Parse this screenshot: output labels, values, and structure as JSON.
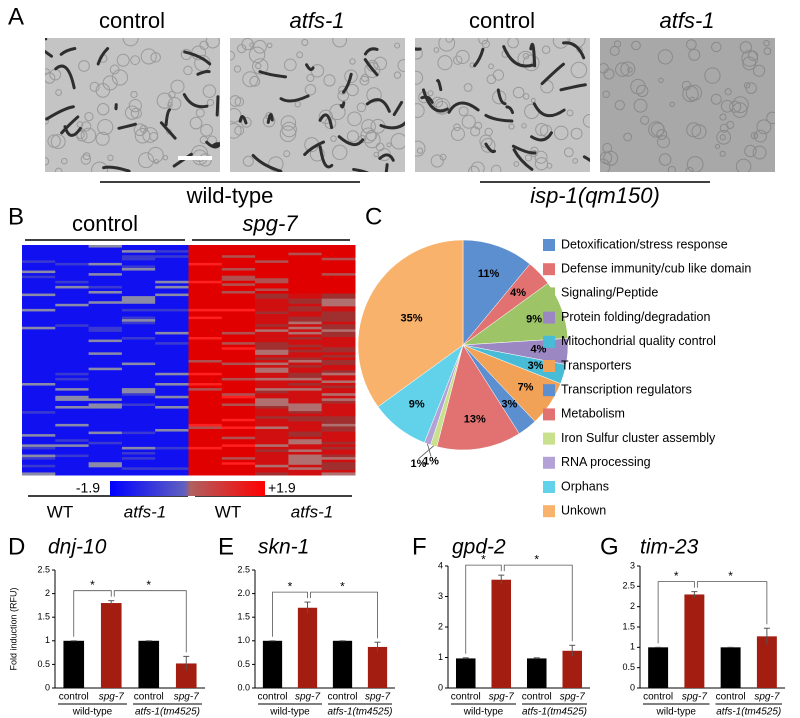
{
  "panel_a": {
    "letter": "A",
    "labels": [
      "control",
      "atfs-1",
      "control",
      "atfs-1"
    ],
    "groups": [
      "wild-type",
      "isp-1(qm150)"
    ]
  },
  "panel_b": {
    "letter": "B",
    "column_groups": [
      "control",
      "spg-7"
    ],
    "row_groups": [
      "WT",
      "atfs-1",
      "WT",
      "atfs-1"
    ],
    "scale_labels": [
      "-1.9",
      "+1.9"
    ]
  },
  "chart_data": [
    {
      "type": "pie",
      "panel": "C",
      "categories": [
        "Detoxification/stress response",
        "Defense immunity/cub like domain",
        "Signaling/Peptide",
        "Protein folding/degradation",
        "Mitochondrial quality control",
        "Transporters",
        "Transcription regulators",
        "Metabolism",
        "Iron Sulfur cluster assembly",
        "RNA processing",
        "Orphans",
        "Unkown"
      ],
      "values": [
        11,
        4,
        9,
        4,
        3,
        7,
        3,
        13,
        1,
        1,
        9,
        35
      ],
      "value_labels": [
        "11%",
        "4%",
        "9%",
        "4%",
        "3%",
        "7%",
        "3%",
        "13%",
        "1%",
        "1%",
        "9%",
        "35%"
      ],
      "colors": [
        "#5b8fd0",
        "#e27272",
        "#9dc567",
        "#9b87c2",
        "#48bcd6",
        "#f2a257",
        "#5b8fd0",
        "#e27272",
        "#c9e08c",
        "#b3a2d6",
        "#62d2ea",
        "#f8b26c"
      ]
    },
    {
      "type": "bar",
      "panel": "D",
      "title": "dnj-10",
      "ylabel": "Fold induction (RFU)",
      "categories": [
        "control",
        "spg-7",
        "control",
        "spg-7"
      ],
      "groups": [
        "wild-type",
        "atfs-1(tm4525)"
      ],
      "values": [
        1,
        1.8,
        1,
        0.52
      ],
      "errors": [
        0,
        0.05,
        0,
        0.15
      ],
      "colors": [
        "#000000",
        "#a31d10",
        "#000000",
        "#a31d10"
      ],
      "ylim": [
        0,
        2.5
      ],
      "yticks": [
        0,
        0.5,
        1,
        1.5,
        2,
        2.5
      ],
      "significance": [
        "*",
        "*"
      ]
    },
    {
      "type": "bar",
      "panel": "E",
      "title": "skn-1",
      "categories": [
        "control",
        "spg-7",
        "control",
        "spg-7"
      ],
      "groups": [
        "wild-type",
        "atfs-1(tm4525)"
      ],
      "values": [
        1,
        1.7,
        1,
        0.87
      ],
      "errors": [
        0,
        0.12,
        0,
        0.1
      ],
      "colors": [
        "#000000",
        "#a31d10",
        "#000000",
        "#a31d10"
      ],
      "ylim": [
        0,
        2.5
      ],
      "yticks": [
        {
          "value": 0,
          "label": "0.0"
        },
        0.5,
        {
          "value": 1,
          "label": "1.0"
        },
        1.5,
        {
          "value": 2,
          "label": "2.0"
        },
        2.5
      ],
      "significance": [
        "*",
        "*"
      ]
    },
    {
      "type": "bar",
      "panel": "F",
      "title": "gpd-2",
      "categories": [
        "control",
        "spg-7",
        "control",
        "spg-7"
      ],
      "groups": [
        "wild-type",
        "atfs-1(tm4525)"
      ],
      "values": [
        0.97,
        3.55,
        0.97,
        1.22
      ],
      "errors": [
        0.02,
        0.15,
        0.02,
        0.18
      ],
      "colors": [
        "#000000",
        "#a31d10",
        "#000000",
        "#a31d10"
      ],
      "ylim": [
        0,
        4
      ],
      "yticks": [
        0,
        1,
        2,
        3,
        4
      ],
      "significance": [
        "*",
        "*"
      ]
    },
    {
      "type": "bar",
      "panel": "G",
      "title": "tim-23",
      "categories": [
        "control",
        "spg-7",
        "control",
        "spg-7"
      ],
      "groups": [
        "wild-type",
        "atfs-1(tm4525)"
      ],
      "values": [
        1,
        2.3,
        1,
        1.27
      ],
      "errors": [
        0,
        0.07,
        0,
        0.2
      ],
      "colors": [
        "#000000",
        "#a31d10",
        "#000000",
        "#a31d10"
      ],
      "ylim": [
        0,
        3
      ],
      "yticks": [
        0,
        0.5,
        1,
        1.5,
        2,
        2.5,
        3
      ],
      "significance": [
        "*",
        "*"
      ]
    }
  ]
}
